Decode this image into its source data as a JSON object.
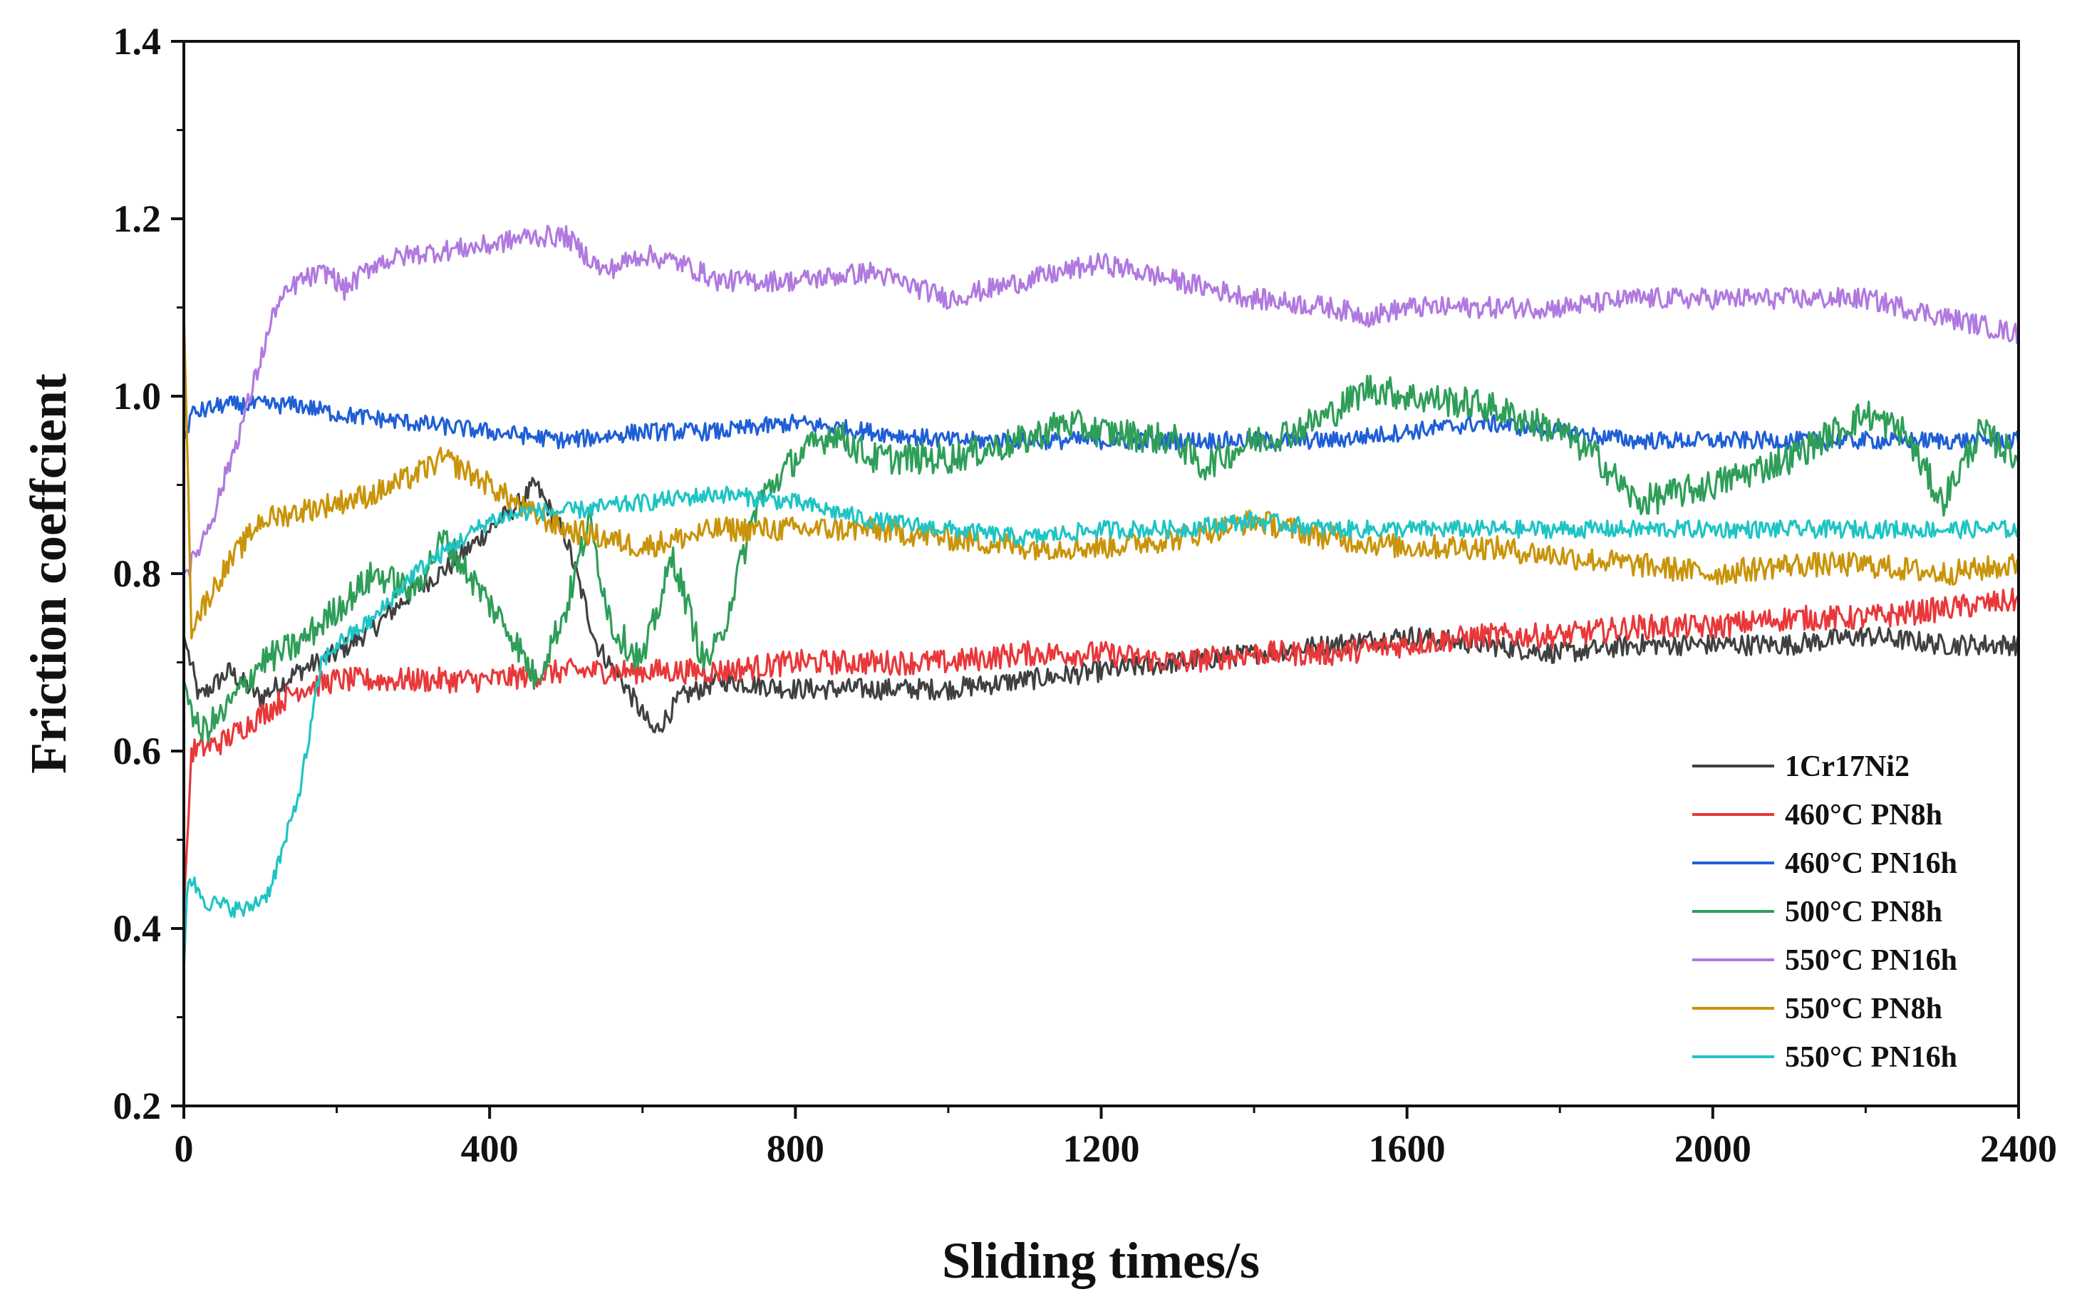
{
  "chart_data": {
    "type": "line",
    "title": "",
    "xlabel": "Sliding times/s",
    "ylabel": "Friction coeffcient",
    "xlim": [
      0,
      2400
    ],
    "ylim": [
      0.2,
      1.4
    ],
    "xticks": [
      "0",
      "400",
      "800",
      "1200",
      "1600",
      "2000",
      "2400"
    ],
    "yticks": [
      "0.2",
      "0.4",
      "0.6",
      "0.8",
      "1.0",
      "1.2",
      "1.4"
    ],
    "legend_position": "bottom-right",
    "series": [
      {
        "name": "1Cr17Ni2",
        "color": "#404040",
        "noise": 0.012,
        "x": [
          0,
          20,
          60,
          100,
          150,
          200,
          250,
          300,
          350,
          400,
          440,
          460,
          500,
          540,
          580,
          615,
          650,
          700,
          800,
          900,
          1000,
          1100,
          1200,
          1300,
          1400,
          1500,
          1600,
          1700,
          1800,
          1900,
          2000,
          2100,
          2200,
          2300,
          2400
        ],
        "y": [
          0.73,
          0.66,
          0.69,
          0.66,
          0.69,
          0.71,
          0.74,
          0.78,
          0.81,
          0.85,
          0.88,
          0.9,
          0.84,
          0.72,
          0.67,
          0.62,
          0.66,
          0.68,
          0.67,
          0.67,
          0.67,
          0.68,
          0.69,
          0.7,
          0.71,
          0.72,
          0.73,
          0.72,
          0.71,
          0.72,
          0.72,
          0.72,
          0.73,
          0.72,
          0.72
        ]
      },
      {
        "name": "460°C PN8h",
        "color": "#e8383a",
        "noise": 0.014,
        "x": [
          0,
          10,
          50,
          100,
          150,
          200,
          300,
          400,
          500,
          600,
          700,
          800,
          900,
          1000,
          1100,
          1200,
          1300,
          1400,
          1500,
          1600,
          1700,
          1800,
          1900,
          2000,
          2100,
          2200,
          2300,
          2400
        ],
        "y": [
          0.42,
          0.6,
          0.61,
          0.64,
          0.67,
          0.68,
          0.68,
          0.68,
          0.69,
          0.69,
          0.69,
          0.7,
          0.7,
          0.7,
          0.71,
          0.71,
          0.7,
          0.71,
          0.71,
          0.72,
          0.73,
          0.73,
          0.74,
          0.74,
          0.75,
          0.75,
          0.76,
          0.77
        ]
      },
      {
        "name": "460°C PN16h",
        "color": "#1f5fd6",
        "noise": 0.01,
        "x": [
          0,
          10,
          50,
          100,
          150,
          200,
          300,
          400,
          500,
          600,
          700,
          800,
          900,
          1000,
          1100,
          1200,
          1300,
          1400,
          1500,
          1600,
          1700,
          1800,
          1900,
          2000,
          2100,
          2200,
          2300,
          2400
        ],
        "y": [
          0.95,
          0.98,
          0.99,
          0.99,
          0.99,
          0.98,
          0.97,
          0.96,
          0.95,
          0.96,
          0.96,
          0.97,
          0.96,
          0.95,
          0.95,
          0.95,
          0.95,
          0.95,
          0.95,
          0.96,
          0.97,
          0.96,
          0.95,
          0.95,
          0.95,
          0.95,
          0.95,
          0.95
        ]
      },
      {
        "name": "500°C PN8h",
        "color": "#2e9e58",
        "noise": 0.018,
        "x": [
          0,
          20,
          50,
          100,
          150,
          200,
          250,
          300,
          340,
          380,
          430,
          460,
          500,
          530,
          560,
          600,
          640,
          680,
          700,
          750,
          800,
          850,
          900,
          1000,
          1100,
          1150,
          1200,
          1300,
          1330,
          1400,
          1450,
          1500,
          1550,
          1600,
          1700,
          1800,
          1850,
          1900,
          2000,
          2100,
          2200,
          2250,
          2300,
          2350,
          2400
        ],
        "y": [
          0.68,
          0.62,
          0.64,
          0.7,
          0.72,
          0.76,
          0.8,
          0.78,
          0.84,
          0.79,
          0.73,
          0.68,
          0.76,
          0.86,
          0.74,
          0.7,
          0.82,
          0.7,
          0.72,
          0.88,
          0.93,
          0.96,
          0.93,
          0.93,
          0.95,
          0.97,
          0.96,
          0.95,
          0.92,
          0.95,
          0.96,
          0.98,
          1.01,
          1.0,
          0.99,
          0.96,
          0.93,
          0.88,
          0.9,
          0.93,
          0.98,
          0.96,
          0.88,
          0.96,
          0.93
        ]
      },
      {
        "name": "550°C PN16h",
        "color": "#b079e0",
        "noise": 0.012,
        "x": [
          0,
          10,
          40,
          80,
          120,
          150,
          190,
          210,
          250,
          300,
          400,
          450,
          500,
          550,
          600,
          650,
          700,
          800,
          900,
          1000,
          1100,
          1200,
          1300,
          1400,
          1500,
          1550,
          1600,
          1700,
          1800,
          1900,
          2000,
          2100,
          2200,
          2300,
          2400
        ],
        "y": [
          0.8,
          0.81,
          0.87,
          0.98,
          1.1,
          1.13,
          1.14,
          1.12,
          1.15,
          1.16,
          1.17,
          1.18,
          1.18,
          1.14,
          1.16,
          1.15,
          1.13,
          1.13,
          1.14,
          1.11,
          1.13,
          1.15,
          1.13,
          1.11,
          1.1,
          1.09,
          1.1,
          1.1,
          1.1,
          1.11,
          1.11,
          1.11,
          1.11,
          1.09,
          1.07
        ]
      },
      {
        "name": "550°C PN8h",
        "color": "#c9940a",
        "noise": 0.014,
        "x": [
          0,
          10,
          50,
          100,
          150,
          200,
          250,
          300,
          340,
          400,
          450,
          500,
          600,
          700,
          800,
          900,
          1000,
          1100,
          1200,
          1300,
          1400,
          1500,
          1600,
          1700,
          1800,
          1900,
          2000,
          2100,
          2200,
          2300,
          2400
        ],
        "y": [
          1.1,
          0.74,
          0.8,
          0.86,
          0.87,
          0.88,
          0.89,
          0.91,
          0.93,
          0.9,
          0.87,
          0.85,
          0.83,
          0.85,
          0.85,
          0.85,
          0.84,
          0.83,
          0.83,
          0.84,
          0.86,
          0.84,
          0.83,
          0.83,
          0.82,
          0.81,
          0.8,
          0.81,
          0.81,
          0.8,
          0.81
        ]
      },
      {
        "name": "550°C PN16h",
        "color": "#1fc4c4",
        "noise": 0.01,
        "x": [
          0,
          5,
          30,
          80,
          110,
          130,
          150,
          165,
          180,
          200,
          250,
          300,
          350,
          400,
          450,
          500,
          600,
          700,
          800,
          900,
          1000,
          1100,
          1200,
          1300,
          1400,
          1500,
          1600,
          1700,
          1800,
          1900,
          2000,
          2100,
          2200,
          2300,
          2400
        ],
        "y": [
          0.35,
          0.46,
          0.43,
          0.42,
          0.44,
          0.49,
          0.55,
          0.62,
          0.7,
          0.72,
          0.75,
          0.8,
          0.83,
          0.86,
          0.87,
          0.87,
          0.88,
          0.89,
          0.88,
          0.86,
          0.85,
          0.84,
          0.85,
          0.85,
          0.86,
          0.85,
          0.85,
          0.85,
          0.85,
          0.85,
          0.85,
          0.85,
          0.85,
          0.85,
          0.85
        ]
      }
    ]
  }
}
